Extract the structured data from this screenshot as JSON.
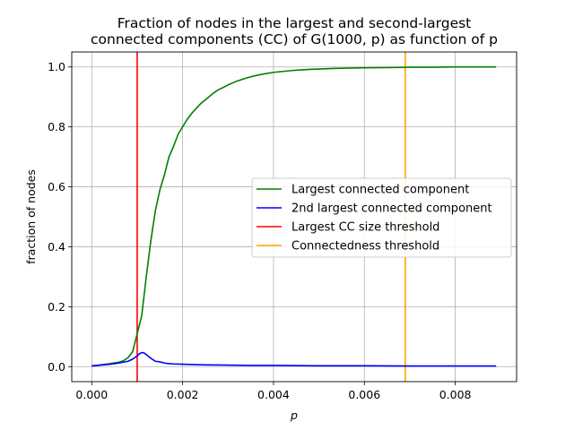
{
  "chart_data": {
    "type": "line",
    "title": "Fraction of nodes in the largest and second-largest\nconnected components (CC) of G(1000, p) as function of p",
    "xlabel": "p",
    "ylabel": "fraction of nodes",
    "xlim": [
      -0.00044,
      0.00935
    ],
    "ylim": [
      -0.05,
      1.05
    ],
    "xticks": [
      0.0,
      0.002,
      0.004,
      0.006,
      0.008
    ],
    "xtick_labels": [
      "0.000",
      "0.002",
      "0.004",
      "0.006",
      "0.008"
    ],
    "yticks": [
      0.0,
      0.2,
      0.4,
      0.6,
      0.8,
      1.0
    ],
    "ytick_labels": [
      "0.0",
      "0.2",
      "0.4",
      "0.6",
      "0.8",
      "1.0"
    ],
    "grid": true,
    "legend_position": "center-right",
    "series": [
      {
        "name": "Largest connected component",
        "color": "#008000",
        "x": [
          0.0,
          0.0002,
          0.0004,
          0.0006,
          0.0007,
          0.0008,
          0.0009,
          0.00095,
          0.001,
          0.00105,
          0.0011,
          0.0012,
          0.0013,
          0.0014,
          0.0015,
          0.0016,
          0.0017,
          0.0018,
          0.0019,
          0.002,
          0.0021,
          0.0022,
          0.0023,
          0.0024,
          0.0025,
          0.0026,
          0.0027,
          0.0028,
          0.0029,
          0.003,
          0.0032,
          0.0034,
          0.0036,
          0.0038,
          0.004,
          0.0042,
          0.0044,
          0.0046,
          0.0048,
          0.005,
          0.0053,
          0.0056,
          0.006,
          0.0065,
          0.007,
          0.0075,
          0.008,
          0.0085,
          0.0089
        ],
        "y": [
          0.003,
          0.006,
          0.01,
          0.015,
          0.02,
          0.03,
          0.05,
          0.08,
          0.11,
          0.14,
          0.17,
          0.3,
          0.42,
          0.52,
          0.59,
          0.64,
          0.7,
          0.735,
          0.775,
          0.8,
          0.825,
          0.845,
          0.862,
          0.878,
          0.89,
          0.903,
          0.915,
          0.925,
          0.932,
          0.94,
          0.953,
          0.963,
          0.971,
          0.977,
          0.982,
          0.985,
          0.988,
          0.99,
          0.992,
          0.993,
          0.995,
          0.996,
          0.997,
          0.998,
          0.999,
          0.999,
          1.0,
          1.0,
          1.0
        ]
      },
      {
        "name": "2nd largest connected component",
        "color": "#0000ff",
        "x": [
          0.0,
          0.0002,
          0.0004,
          0.0006,
          0.0008,
          0.0009,
          0.001,
          0.00105,
          0.0011,
          0.00115,
          0.0012,
          0.0013,
          0.0014,
          0.0015,
          0.0016,
          0.0017,
          0.0018,
          0.002,
          0.0022,
          0.0025,
          0.003,
          0.0035,
          0.004,
          0.005,
          0.006,
          0.007,
          0.008,
          0.0089
        ],
        "y": [
          0.002,
          0.005,
          0.008,
          0.012,
          0.018,
          0.025,
          0.036,
          0.043,
          0.047,
          0.046,
          0.04,
          0.028,
          0.018,
          0.016,
          0.012,
          0.01,
          0.009,
          0.008,
          0.007,
          0.006,
          0.005,
          0.004,
          0.004,
          0.003,
          0.003,
          0.002,
          0.002,
          0.002
        ]
      },
      {
        "name": "Largest CC size threshold",
        "color": "#ff0000",
        "vline": 0.001
      },
      {
        "name": "Connectedness threshold",
        "color": "#ffa500",
        "vline": 0.0069
      }
    ]
  }
}
